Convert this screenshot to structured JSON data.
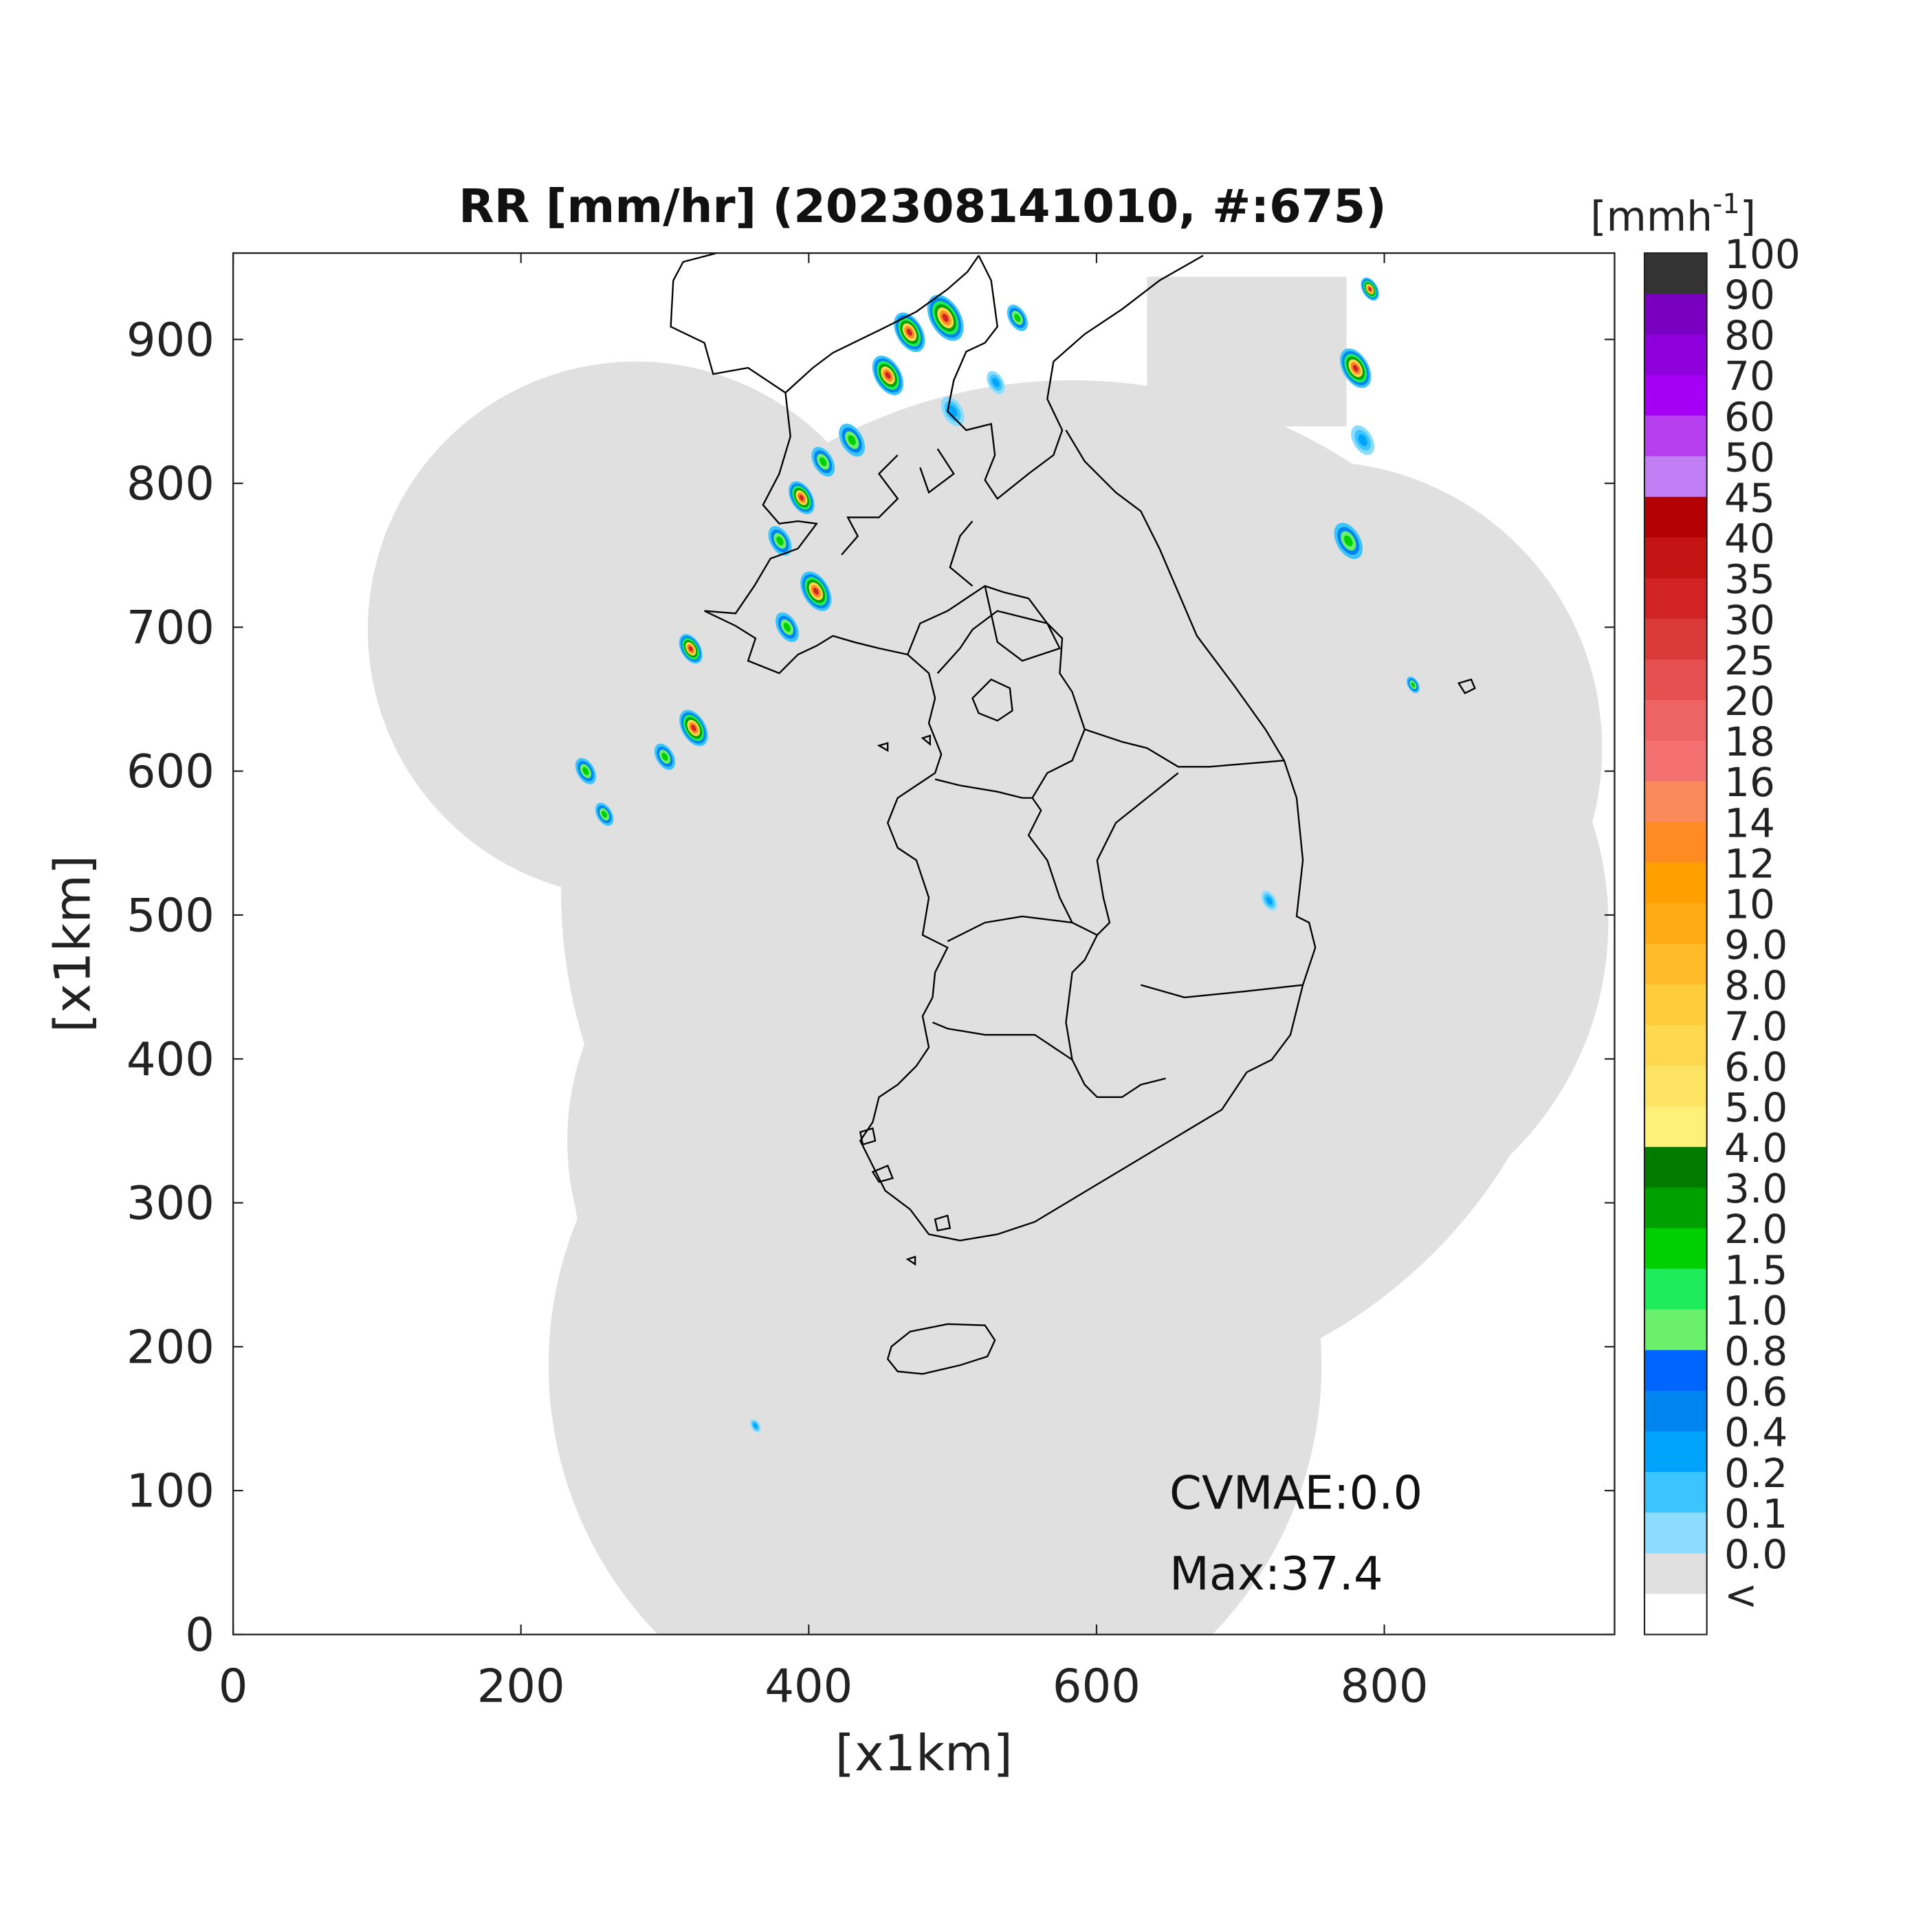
{
  "chart_data": {
    "type": "heatmap",
    "title": "RR [mm/hr] (202308141010, #:675)",
    "xlabel": "[x1km]",
    "ylabel": "[x1km]",
    "xlim": [
      0,
      960
    ],
    "ylim": [
      0,
      960
    ],
    "xticks": [
      "0",
      "200",
      "400",
      "600",
      "800"
    ],
    "xtick_values": [
      0,
      200,
      400,
      600,
      800
    ],
    "yticks": [
      "0",
      "100",
      "200",
      "300",
      "400",
      "500",
      "600",
      "700",
      "800",
      "900"
    ],
    "ytick_values": [
      0,
      100,
      200,
      300,
      400,
      500,
      600,
      700,
      800,
      900
    ],
    "colorbar": {
      "unit_label": "[mmh",
      "unit_exp": "-1",
      "unit_close": "]",
      "labels": [
        "100",
        "90",
        "80",
        "70",
        "60",
        "50",
        "45",
        "40",
        "35",
        "30",
        "25",
        "20",
        "18",
        "16",
        "14",
        "12",
        "10",
        "9.0",
        "8.0",
        "7.0",
        "6.0",
        "5.0",
        "4.0",
        "3.0",
        "2.0",
        "1.5",
        "1.0",
        "0.8",
        "0.6",
        "0.4",
        "0.2",
        "0.1",
        "0.0",
        "<"
      ],
      "colors": [
        "#333333",
        "#7a00c0",
        "#8e00dc",
        "#a500f5",
        "#b63ff0",
        "#c27ff5",
        "#b40000",
        "#c41414",
        "#d22424",
        "#da3a3a",
        "#e65050",
        "#ee6464",
        "#f57070",
        "#fa8a5a",
        "#ff8b22",
        "#ffa000",
        "#ffac14",
        "#ffbb28",
        "#ffcc3c",
        "#ffd850",
        "#ffe464",
        "#fff07a",
        "#007b00",
        "#00a000",
        "#00d000",
        "#1eec5a",
        "#6af06a",
        "#0064ff",
        "#0084f0",
        "#00a4fa",
        "#3cc4ff",
        "#8cdcff",
        "#e0e0e0",
        "#ffffff"
      ]
    },
    "annotations": {
      "cvmae": "CVMAE:0.0",
      "max": "Max:37.4"
    },
    "background_color": "#e0e0e0",
    "rain_cells": [
      {
        "x": 470,
        "y": 905,
        "r": 12,
        "level": "heavy"
      },
      {
        "x": 495,
        "y": 915,
        "r": 14,
        "level": "heavy"
      },
      {
        "x": 455,
        "y": 875,
        "r": 12,
        "level": "heavy"
      },
      {
        "x": 430,
        "y": 830,
        "r": 10,
        "level": "moderate"
      },
      {
        "x": 410,
        "y": 815,
        "r": 9,
        "level": "moderate"
      },
      {
        "x": 395,
        "y": 790,
        "r": 10,
        "level": "heavy"
      },
      {
        "x": 380,
        "y": 760,
        "r": 9,
        "level": "moderate"
      },
      {
        "x": 405,
        "y": 725,
        "r": 12,
        "level": "heavy"
      },
      {
        "x": 385,
        "y": 700,
        "r": 9,
        "level": "moderate"
      },
      {
        "x": 320,
        "y": 630,
        "r": 11,
        "level": "heavy"
      },
      {
        "x": 300,
        "y": 610,
        "r": 8,
        "level": "moderate"
      },
      {
        "x": 318,
        "y": 685,
        "r": 9,
        "level": "heavy"
      },
      {
        "x": 245,
        "y": 600,
        "r": 8,
        "level": "moderate"
      },
      {
        "x": 258,
        "y": 570,
        "r": 7,
        "level": "moderate"
      },
      {
        "x": 545,
        "y": 915,
        "r": 8,
        "level": "moderate"
      },
      {
        "x": 780,
        "y": 880,
        "r": 12,
        "level": "heavy"
      },
      {
        "x": 785,
        "y": 830,
        "r": 9,
        "level": "light"
      },
      {
        "x": 775,
        "y": 760,
        "r": 11,
        "level": "moderate"
      },
      {
        "x": 790,
        "y": 935,
        "r": 7,
        "level": "heavy"
      },
      {
        "x": 820,
        "y": 660,
        "r": 5,
        "level": "moderate"
      },
      {
        "x": 500,
        "y": 850,
        "r": 9,
        "level": "light"
      },
      {
        "x": 530,
        "y": 870,
        "r": 7,
        "level": "light"
      },
      {
        "x": 720,
        "y": 510,
        "r": 6,
        "level": "light"
      },
      {
        "x": 363,
        "y": 145,
        "r": 4,
        "level": "light"
      }
    ]
  }
}
